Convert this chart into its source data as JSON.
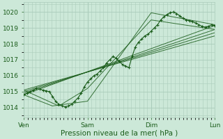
{
  "bg_color": "#cce8d8",
  "grid_color": "#aaccbb",
  "line_color": "#1a5c1a",
  "xlabel": "Pression niveau de la mer( hPa )",
  "xlabel_fontsize": 7.5,
  "tick_fontsize": 6.5,
  "yticks": [
    1014,
    1015,
    1016,
    1017,
    1018,
    1019,
    1020
  ],
  "ylim": [
    1013.4,
    1020.6
  ],
  "xlim": [
    0.0,
    3.0
  ],
  "xtick_positions": [
    0.0,
    1.0,
    2.0,
    3.0
  ],
  "xtick_labels": [
    "Ven",
    "Sam",
    "Dim",
    "Lun"
  ],
  "main_series_x": [
    0.0,
    0.05,
    0.1,
    0.15,
    0.2,
    0.25,
    0.3,
    0.35,
    0.4,
    0.45,
    0.5,
    0.55,
    0.6,
    0.65,
    0.7,
    0.75,
    0.8,
    0.85,
    0.9,
    0.95,
    1.0,
    1.05,
    1.1,
    1.15,
    1.2,
    1.25,
    1.3,
    1.35,
    1.4,
    1.45,
    1.5,
    1.55,
    1.6,
    1.65,
    1.7,
    1.75,
    1.8,
    1.85,
    1.9,
    1.95,
    2.0,
    2.05,
    2.1,
    2.15,
    2.2,
    2.25,
    2.3,
    2.35,
    2.4,
    2.45,
    2.5,
    2.55,
    2.6,
    2.65,
    2.7,
    2.75,
    2.8,
    2.85,
    2.9,
    2.95,
    3.0
  ],
  "main_series_y": [
    1014.8,
    1014.9,
    1015.0,
    1015.1,
    1015.2,
    1015.15,
    1015.1,
    1015.05,
    1015.0,
    1014.7,
    1014.4,
    1014.2,
    1014.1,
    1014.05,
    1014.1,
    1014.2,
    1014.4,
    1014.6,
    1014.9,
    1015.3,
    1015.6,
    1015.8,
    1016.0,
    1016.1,
    1016.3,
    1016.5,
    1016.8,
    1017.0,
    1017.2,
    1017.1,
    1016.9,
    1016.7,
    1016.6,
    1016.5,
    1017.2,
    1017.8,
    1018.1,
    1018.3,
    1018.5,
    1018.6,
    1018.8,
    1019.0,
    1019.2,
    1019.5,
    1019.7,
    1019.85,
    1019.95,
    1020.0,
    1019.9,
    1019.75,
    1019.6,
    1019.5,
    1019.45,
    1019.4,
    1019.3,
    1019.2,
    1019.1,
    1019.05,
    1019.1,
    1019.2,
    1019.15
  ],
  "straight_lines": [
    {
      "x": [
        0.0,
        3.0
      ],
      "y": [
        1014.8,
        1019.15
      ]
    },
    {
      "x": [
        0.0,
        3.0
      ],
      "y": [
        1014.9,
        1018.9
      ]
    },
    {
      "x": [
        0.0,
        3.0
      ],
      "y": [
        1015.0,
        1018.7
      ]
    },
    {
      "x": [
        0.0,
        3.0
      ],
      "y": [
        1015.1,
        1018.5
      ]
    },
    {
      "x": [
        0.0,
        0.45,
        1.0,
        2.0,
        3.0
      ],
      "y": [
        1014.8,
        1014.1,
        1014.4,
        1019.95,
        1019.2
      ]
    },
    {
      "x": [
        0.0,
        0.55,
        1.0,
        2.0,
        3.0
      ],
      "y": [
        1015.1,
        1014.1,
        1015.2,
        1019.5,
        1018.9
      ]
    }
  ]
}
